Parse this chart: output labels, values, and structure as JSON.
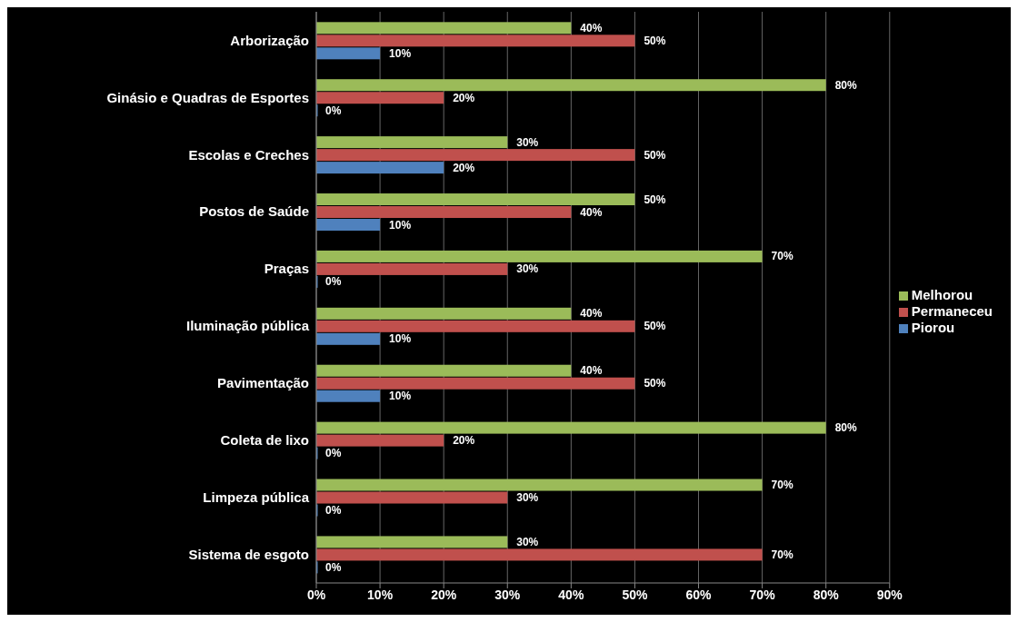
{
  "chart_data": {
    "type": "bar",
    "orientation": "horizontal",
    "categories": [
      "Arborização",
      "Ginásio e Quadras de Esportes",
      "Escolas e Creches",
      "Postos de Saúde",
      "Praças",
      "Iluminação pública",
      "Pavimentação",
      "Coleta de lixo",
      "Limpeza pública",
      "Sistema de esgoto"
    ],
    "series": [
      {
        "name": "Melhorou",
        "color": "#9bbb59",
        "values": [
          40,
          80,
          30,
          50,
          70,
          40,
          40,
          80,
          70,
          30
        ],
        "value_labels": [
          "40%",
          "80%",
          "30%",
          "50%",
          "70%",
          "40%",
          "40%",
          "80%",
          "70%",
          "30%"
        ]
      },
      {
        "name": "Permaneceu",
        "color": "#c0504d",
        "values": [
          50,
          20,
          50,
          40,
          30,
          50,
          50,
          20,
          30,
          70
        ],
        "value_labels": [
          "50%",
          "20%",
          "50%",
          "40%",
          "30%",
          "50%",
          "50%",
          "20%",
          "30%",
          "70%"
        ]
      },
      {
        "name": "Piorou",
        "color": "#4f81bd",
        "values": [
          10,
          0,
          20,
          10,
          0,
          10,
          10,
          0,
          0,
          0
        ],
        "value_labels": [
          "10%",
          "0%",
          "20%",
          "10%",
          "0%",
          "10%",
          "10%",
          "0%",
          "0%",
          "0%"
        ]
      }
    ],
    "xlim": [
      0,
      90
    ],
    "xticks": [
      {
        "value": 0,
        "label": "0%"
      },
      {
        "value": 10,
        "label": "10%"
      },
      {
        "value": 20,
        "label": "20%"
      },
      {
        "value": 30,
        "label": "30%"
      },
      {
        "value": 40,
        "label": "40%"
      },
      {
        "value": 50,
        "label": "50%"
      },
      {
        "value": 60,
        "label": "60%"
      },
      {
        "value": 70,
        "label": "70%"
      },
      {
        "value": 80,
        "label": "80%"
      },
      {
        "value": 90,
        "label": "90%"
      }
    ],
    "grid": "x",
    "legend": "right"
  }
}
